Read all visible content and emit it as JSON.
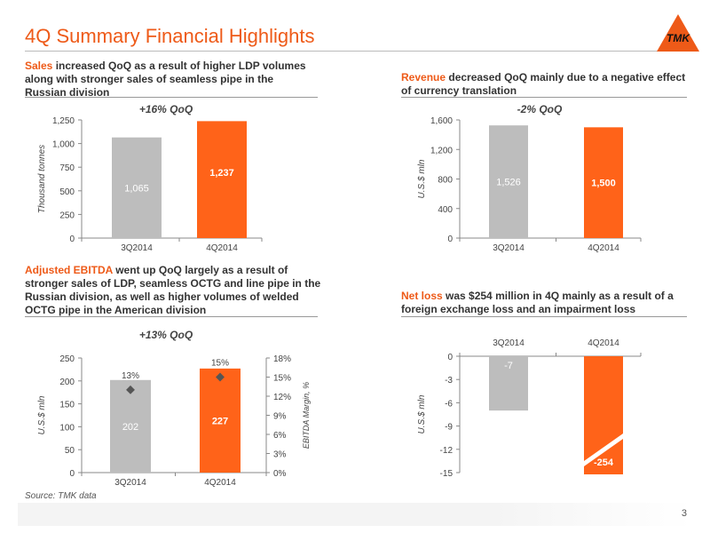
{
  "page": {
    "title": "4Q Summary Financial Highlights",
    "logo_text": "TMK",
    "source": "Source: TMK data",
    "page_number": "3"
  },
  "headings": {
    "sales": {
      "highlight": "Sales",
      "rest": " increased QoQ as a result of higher LDP volumes along with stronger sales of seamless pipe in the Russian division"
    },
    "revenue": {
      "highlight": "Revenue",
      "rest": " decreased QoQ mainly due to a negative effect of currency translation"
    },
    "ebitda": {
      "highlight": "Adjusted EBITDA",
      "rest": " went up QoQ largely as a result of stronger sales of LDP, seamless OCTG and line pipe in the Russian division, as well as higher volumes of welded OCTG pipe in the American division"
    },
    "netloss": {
      "highlight": "Net loss",
      "rest": " was $254 million in 4Q mainly as a result of a foreign exchange loss and an impairment loss"
    }
  },
  "colors": {
    "prev": "#bdbdbd",
    "curr": "#ff6319",
    "accent": "#ee5a18",
    "marker": "#555555"
  },
  "chart_data": [
    {
      "id": "sales",
      "type": "bar",
      "categories": [
        "3Q2014",
        "4Q2014"
      ],
      "values": [
        1065,
        1237
      ],
      "value_labels": [
        "1,065",
        "1,237"
      ],
      "annotation": "+16% QoQ",
      "ylabel": "Thousand tonnes",
      "ylim": [
        0,
        1250
      ],
      "yticks": [
        0,
        250,
        500,
        750,
        1000,
        1250
      ],
      "ytick_labels": [
        "0",
        "250",
        "500",
        "750",
        "1,000",
        "1,250"
      ]
    },
    {
      "id": "revenue",
      "type": "bar",
      "categories": [
        "3Q2014",
        "4Q2014"
      ],
      "values": [
        1526,
        1500
      ],
      "value_labels": [
        "1,526",
        "1,500"
      ],
      "annotation": "-2% QoQ",
      "ylabel": "U.S.$ mln",
      "ylim": [
        0,
        1600
      ],
      "yticks": [
        0,
        400,
        800,
        1200,
        1600
      ],
      "ytick_labels": [
        "0",
        "400",
        "800",
        "1,200",
        "1,600"
      ]
    },
    {
      "id": "ebitda",
      "type": "bar",
      "categories": [
        "3Q2014",
        "4Q2014"
      ],
      "values": [
        202,
        227
      ],
      "value_labels": [
        "202",
        "227"
      ],
      "annotation": "+13% QoQ",
      "ylabel": "U.S.$ mln",
      "ylim": [
        0,
        250
      ],
      "yticks": [
        0,
        50,
        100,
        150,
        200,
        250
      ],
      "ytick_labels": [
        "0",
        "50",
        "100",
        "150",
        "200",
        "250"
      ],
      "secondary": {
        "name": "EBITDA Margin, %",
        "values": [
          13,
          15
        ],
        "value_labels": [
          "13%",
          "15%"
        ],
        "ylim": [
          0,
          18
        ],
        "yticks": [
          0,
          3,
          6,
          9,
          12,
          15,
          18
        ],
        "ytick_labels": [
          "0%",
          "3%",
          "6%",
          "9%",
          "12%",
          "15%",
          "18%"
        ]
      }
    },
    {
      "id": "netloss",
      "type": "bar",
      "categories": [
        "3Q2014",
        "4Q2014"
      ],
      "values": [
        -7,
        -254
      ],
      "value_labels": [
        "-7",
        "-254"
      ],
      "ylabel": "U.S.$ mln",
      "ylim": [
        -15,
        0
      ],
      "yticks": [
        0,
        -3,
        -6,
        -9,
        -12,
        -15
      ],
      "ytick_labels": [
        "0",
        "-3",
        "-6",
        "-9",
        "-12",
        "-15"
      ],
      "axis_break": true
    }
  ]
}
